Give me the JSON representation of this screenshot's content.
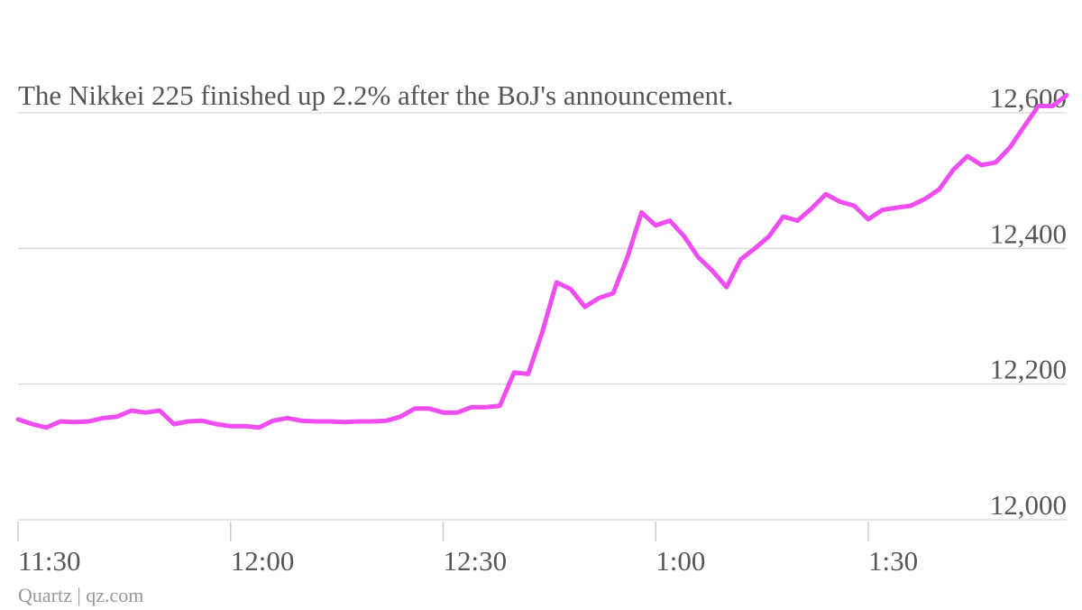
{
  "chart_data": {
    "type": "line",
    "title": "The Nikkei 225 finished up 2.2% after the BoJ's announcement.",
    "source": "Quartz | qz.com",
    "categories": [
      "11:30",
      null,
      null,
      null,
      null,
      null,
      null,
      null,
      null,
      null,
      null,
      null,
      null,
      null,
      null,
      "12:00",
      null,
      null,
      null,
      null,
      null,
      null,
      null,
      null,
      null,
      null,
      null,
      null,
      null,
      null,
      "12:30",
      null,
      null,
      null,
      null,
      null,
      null,
      null,
      null,
      null,
      null,
      null,
      null,
      null,
      null,
      "1:00",
      null,
      null,
      null,
      null,
      null,
      null,
      null,
      null,
      null,
      null,
      null,
      null,
      null,
      null,
      "1:30",
      null,
      null,
      null,
      null,
      null,
      null,
      null,
      null,
      null,
      null,
      null,
      null,
      null,
      null
    ],
    "values": [
      12148,
      12141,
      12136,
      12145,
      12144,
      12145,
      12150,
      12152,
      12161,
      12158,
      12161,
      12141,
      12145,
      12146,
      12141,
      12138,
      12138,
      12136,
      12146,
      12150,
      12146,
      12145,
      12145,
      12144,
      12145,
      12145,
      12146,
      12152,
      12164,
      12164,
      12158,
      12158,
      12166,
      12166,
      12168,
      12217,
      12215,
      12277,
      12350,
      12340,
      12314,
      12327,
      12334,
      12387,
      12453,
      12434,
      12441,
      12418,
      12387,
      12367,
      12343,
      12384,
      12400,
      12418,
      12447,
      12441,
      12459,
      12480,
      12469,
      12463,
      12443,
      12457,
      12460,
      12463,
      12473,
      12487,
      12516,
      12536,
      12523,
      12527,
      12549,
      12580,
      12610,
      12610,
      12626
    ],
    "color": "#ee4df0",
    "ylim": [
      12000,
      12650
    ],
    "yticks": [
      {
        "value": 12000,
        "label": "12,000"
      },
      {
        "value": 12200,
        "label": "12,200"
      },
      {
        "value": 12400,
        "label": "12,400"
      },
      {
        "value": 12600,
        "label": "12,600"
      }
    ],
    "grid": true
  }
}
